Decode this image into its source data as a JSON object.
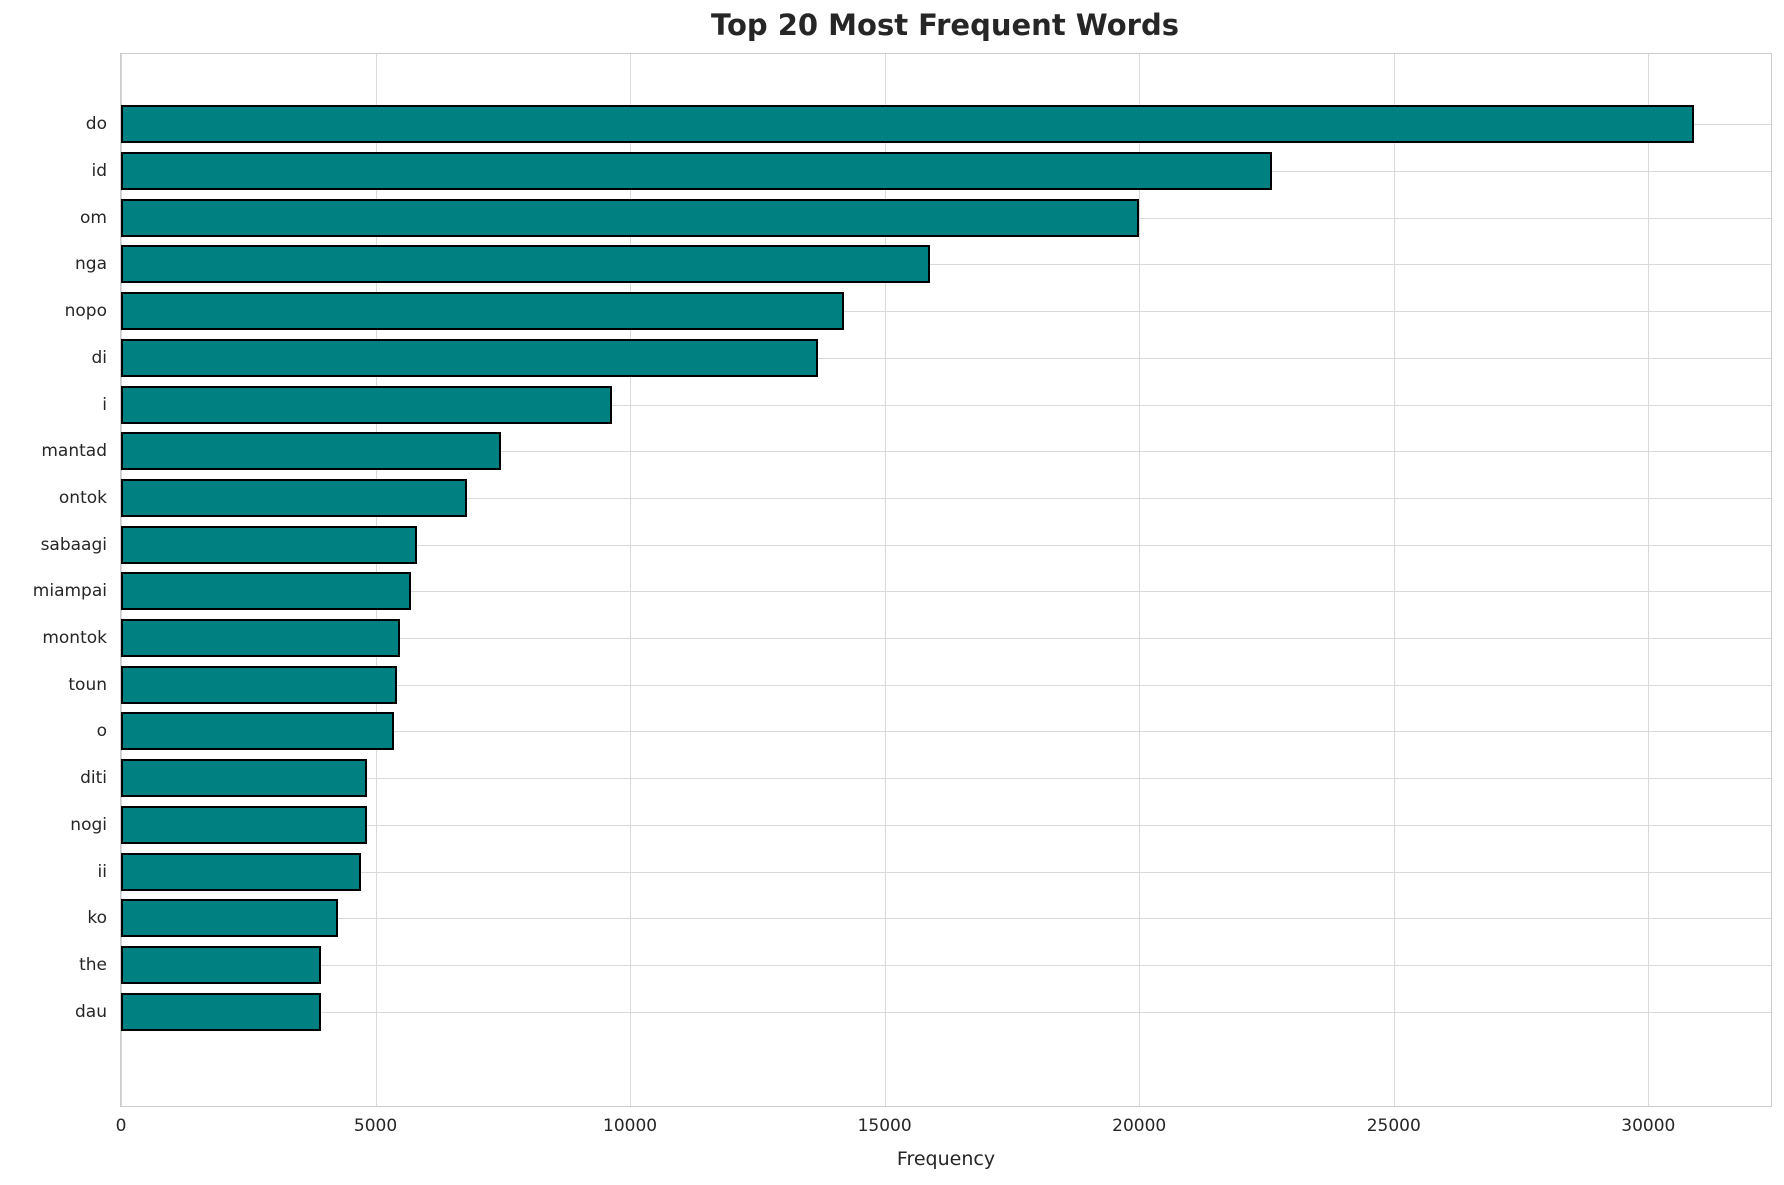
{
  "chart_data": {
    "type": "bar",
    "orientation": "horizontal",
    "title": "Top 20 Most Frequent Words",
    "xlabel": "Frequency",
    "ylabel": "",
    "categories": [
      "do",
      "id",
      "om",
      "nga",
      "nopo",
      "di",
      "i",
      "mantad",
      "ontok",
      "sabaagi",
      "miampai",
      "montok",
      "toun",
      "o",
      "diti",
      "nogi",
      "ii",
      "ko",
      "the",
      "dau"
    ],
    "values": [
      30900,
      22600,
      20000,
      15900,
      14200,
      13700,
      9650,
      7460,
      6790,
      5810,
      5690,
      5490,
      5430,
      5370,
      4840,
      4830,
      4710,
      4270,
      3930,
      3920
    ],
    "xticks": [
      0,
      5000,
      10000,
      15000,
      20000,
      25000,
      30000
    ],
    "xlim": [
      0,
      32410
    ],
    "grid": true,
    "legend": false,
    "colors": {
      "bar_fill": "#008080",
      "bar_edge": "#000000",
      "grid": "#d9d9d9",
      "spine": "#cccccc",
      "text": "#262626",
      "background": "#ffffff"
    }
  }
}
